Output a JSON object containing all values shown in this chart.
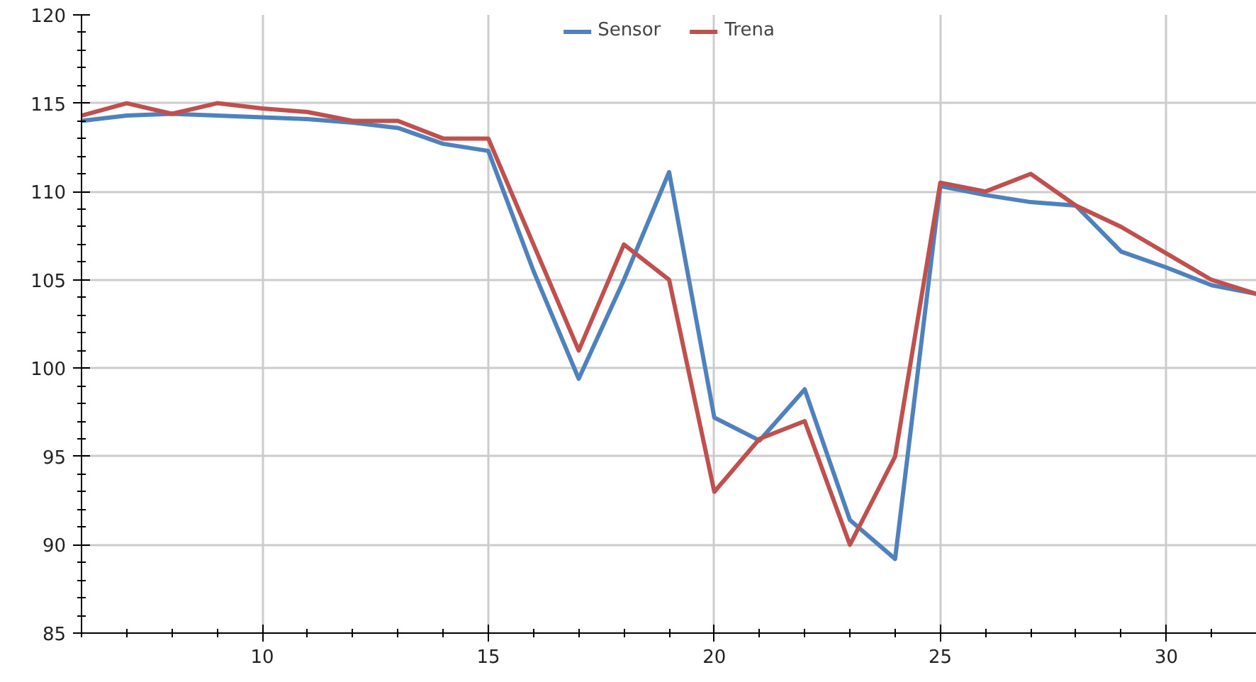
{
  "chart_data": {
    "type": "line",
    "x": [
      6,
      7,
      8,
      9,
      10,
      11,
      12,
      13,
      14,
      15,
      16,
      17,
      18,
      19,
      20,
      21,
      22,
      23,
      24,
      25,
      26,
      27,
      28,
      29,
      30,
      31,
      32
    ],
    "series": [
      {
        "name": "Sensor",
        "color": "#4f81bd",
        "values": [
          114.0,
          114.3,
          114.4,
          114.3,
          114.2,
          114.1,
          113.9,
          113.6,
          112.7,
          112.3,
          105.5,
          99.4,
          105,
          111.1,
          97.2,
          95.9,
          98.8,
          91.4,
          89.2,
          110.3,
          109.8,
          109.4,
          109.2,
          106.6,
          105.7,
          104.7,
          104.2
        ]
      },
      {
        "name": "Trena",
        "color": "#c0504d",
        "values": [
          114.3,
          115,
          114.4,
          115,
          114.7,
          114.5,
          114,
          114,
          113,
          113,
          107,
          101,
          107,
          105,
          93,
          96,
          97,
          90,
          95,
          110.5,
          110,
          111,
          109.2,
          108,
          106.5,
          105,
          104.2
        ]
      }
    ],
    "xlim": [
      6,
      32
    ],
    "ylim": [
      85,
      120
    ],
    "xticks": [
      10,
      15,
      20,
      25,
      30
    ],
    "yticks": [
      85,
      90,
      95,
      100,
      105,
      110,
      115,
      120
    ],
    "grid": true,
    "legend": "top",
    "marker": "none",
    "line_style": "solid"
  }
}
